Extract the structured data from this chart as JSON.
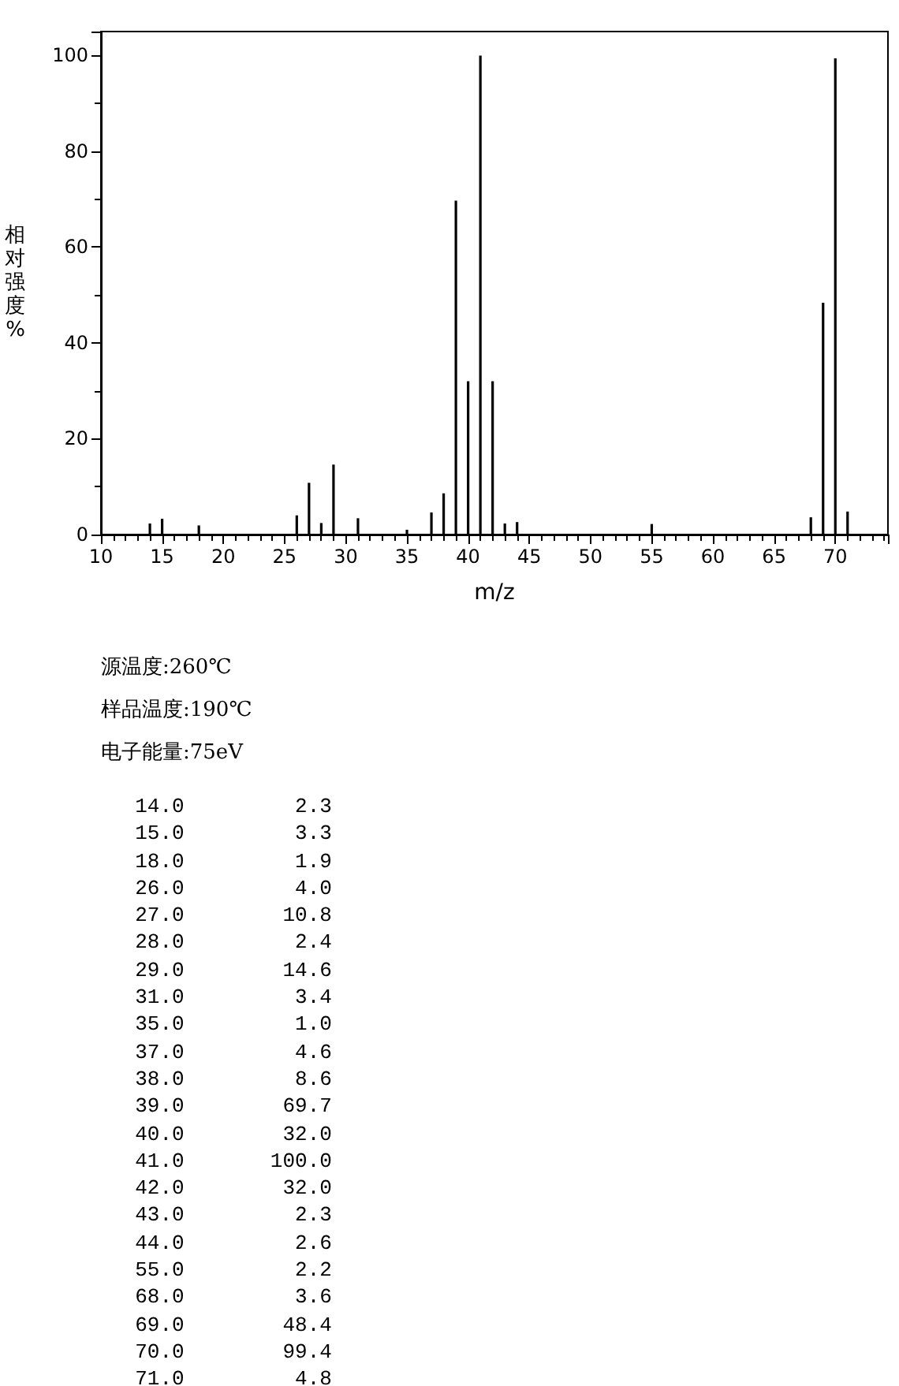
{
  "chart_data": [
    {
      "type": "bar",
      "xlabel": "m/z",
      "ylabel": "相对强度%",
      "x": [
        14,
        15,
        18,
        26,
        27,
        28,
        29,
        31,
        35,
        37,
        38,
        39,
        40,
        41,
        42,
        43,
        44,
        55,
        68,
        69,
        70,
        71
      ],
      "values": [
        2.3,
        3.3,
        1.9,
        4.0,
        10.8,
        2.4,
        14.6,
        3.4,
        1.0,
        4.6,
        8.6,
        69.7,
        32.0,
        100.0,
        32.0,
        2.3,
        2.6,
        2.2,
        3.6,
        48.4,
        99.4,
        4.8
      ],
      "color": "#000000",
      "xlim": [
        10,
        74.3
      ],
      "xticks": [
        10,
        15,
        20,
        25,
        30,
        35,
        40,
        45,
        50,
        55,
        60,
        65,
        70
      ],
      "ylim": [
        0,
        105
      ],
      "yticks": [
        0,
        20,
        40,
        60,
        80,
        100
      ],
      "annotations": [
        "源温度:260℃",
        "样品温度:190℃",
        "电子能量:75eV"
      ]
    },
    {
      "type": "other",
      "annotations": [
        "14.0 2.3",
        "15.0 3.3",
        "18.0 1.9",
        "26.0 4.0",
        "27.0 10.8",
        "28.0 2.4",
        "29.0 14.6",
        "31.0 3.4",
        "35.0 1.0",
        "37.0 4.6",
        "38.0 8.6",
        "39.0 69.7",
        "40.0 32.0",
        "41.0 100.0",
        "42.0 32.0",
        "43.0 2.3",
        "44.0 2.6",
        "55.0 2.2",
        "68.0 3.6",
        "69.0 48.4",
        "70.0 99.4",
        "71.0 4.8"
      ]
    }
  ]
}
